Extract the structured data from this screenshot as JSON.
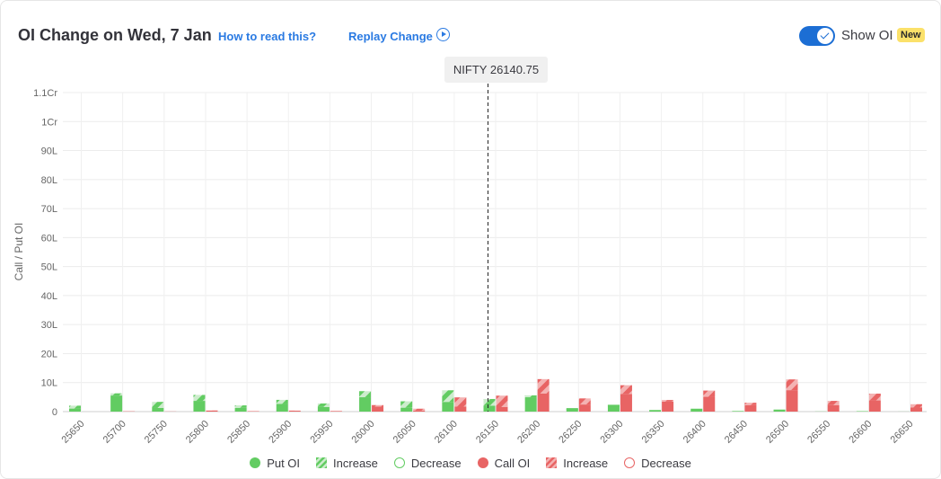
{
  "header": {
    "title": "OI Change on Wed, 7 Jan",
    "how_to_read": "How to read this?",
    "replay": "Replay Change",
    "show_oi_label": "Show OI",
    "new_badge": "New",
    "show_oi_enabled": true
  },
  "spot": {
    "label": "NIFTY 26140.75",
    "value": 26140.75
  },
  "colors": {
    "put": "#62cc62",
    "put_light": "#cdeccd",
    "call": "#e86464",
    "call_light": "#f4b3b3"
  },
  "chart_data": {
    "type": "bar",
    "ylabel": "Call / Put OI",
    "ylim": [
      0,
      110000000
    ],
    "yticks": [
      {
        "value": 0,
        "label": "0"
      },
      {
        "value": 10000000,
        "label": "10L"
      },
      {
        "value": 20000000,
        "label": "20L"
      },
      {
        "value": 30000000,
        "label": "30L"
      },
      {
        "value": 40000000,
        "label": "40L"
      },
      {
        "value": 50000000,
        "label": "50L"
      },
      {
        "value": 60000000,
        "label": "60L"
      },
      {
        "value": 70000000,
        "label": "70L"
      },
      {
        "value": 80000000,
        "label": "80L"
      },
      {
        "value": 90000000,
        "label": "90L"
      },
      {
        "value": 100000000,
        "label": "1Cr"
      },
      {
        "value": 110000000,
        "label": "1.1Cr"
      }
    ],
    "categories": [
      "25650",
      "25700",
      "25750",
      "25800",
      "25850",
      "25900",
      "25950",
      "26000",
      "26050",
      "26100",
      "26150",
      "26200",
      "26250",
      "26300",
      "26350",
      "26400",
      "26450",
      "26500",
      "26550",
      "26600",
      "26650"
    ],
    "series": [
      {
        "name": "Put OI",
        "base": [
          10.5,
          55.5,
          12.5,
          37.0,
          13.0,
          26.5,
          16.0,
          49.5,
          13.5,
          33.5,
          20.5,
          49.5,
          10.0,
          22.5,
          5.5,
          10.0,
          2.0,
          7.0,
          0.5,
          1.5,
          0.2
        ],
        "change": [
          10.0,
          7.5,
          21.0,
          20.5,
          8.5,
          14.0,
          12.0,
          21.0,
          22.0,
          40.0,
          23.0,
          6.5,
          -2.0,
          -1.0,
          0,
          0,
          0,
          0,
          0,
          0,
          0
        ]
      },
      {
        "name": "Call OI",
        "base": [
          0,
          1.0,
          0.5,
          3.5,
          1.5,
          3.0,
          2.0,
          17.0,
          3.5,
          17.0,
          15.5,
          62.0,
          24.5,
          61.0,
          34.5,
          51.0,
          22.5,
          74.0,
          22.5,
          38.5,
          14.0
        ],
        "change": [
          0,
          0,
          0,
          0.5,
          0,
          0.5,
          0,
          5.5,
          6.5,
          32.0,
          39.5,
          50.0,
          21.0,
          30.0,
          5.5,
          21.5,
          8.0,
          37.0,
          14.5,
          23.5,
          11.5
        ]
      }
    ],
    "value_unit_note": "values in lakh"
  },
  "legend": [
    {
      "label": "Put OI",
      "kind": "put-solid"
    },
    {
      "label": "Increase",
      "kind": "put-hatch"
    },
    {
      "label": "Decrease",
      "kind": "put-outline"
    },
    {
      "label": "Call OI",
      "kind": "call-solid"
    },
    {
      "label": "Increase",
      "kind": "call-hatch"
    },
    {
      "label": "Decrease",
      "kind": "call-outline"
    }
  ]
}
